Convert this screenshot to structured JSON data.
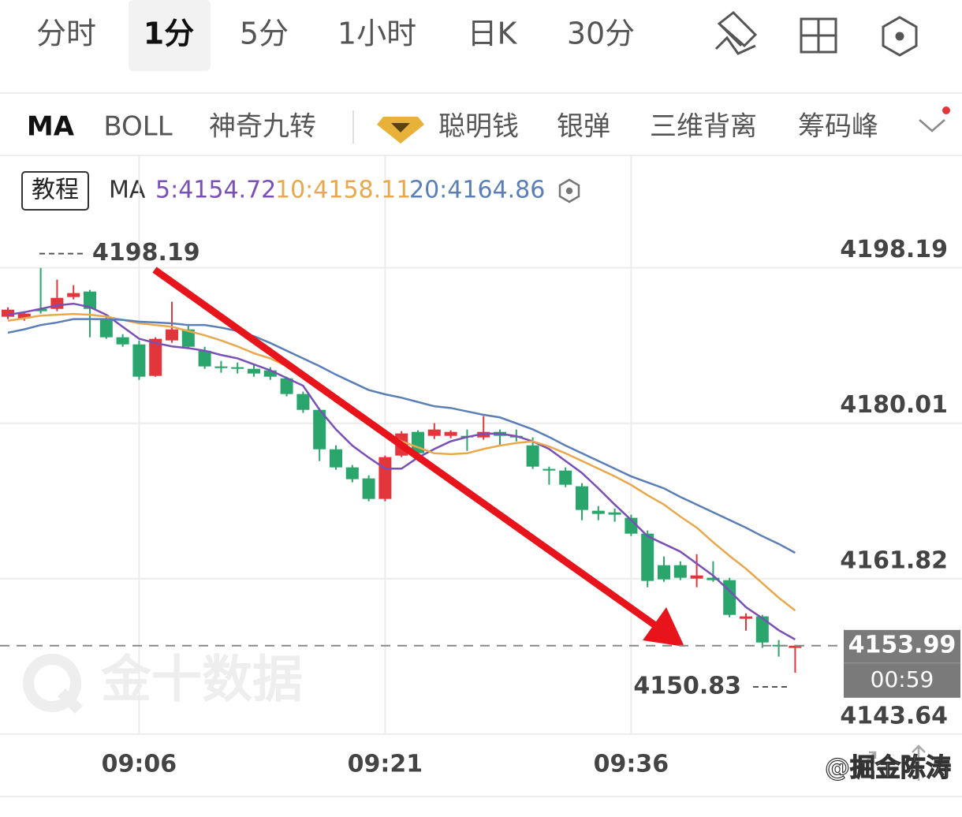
{
  "tabs": [
    "分时",
    "1分",
    "5分",
    "1小时",
    "日K",
    "30分"
  ],
  "indicators": [
    "MA",
    "BOLL",
    "神奇九转",
    "聪明钱",
    "银弹",
    "三维背离",
    "筹码峰"
  ],
  "tutorial_button": "教程",
  "legend_title": "MA",
  "watermark": "金十数据",
  "author_mark": "@掘金陈涛",
  "chart_data": {
    "type": "candlestick",
    "categories": [
      null,
      null,
      null,
      null,
      null,
      null,
      null,
      null,
      "09:06",
      null,
      null,
      null,
      null,
      null,
      null,
      null,
      null,
      null,
      null,
      null,
      null,
      null,
      null,
      "09:21",
      null,
      null,
      null,
      null,
      null,
      null,
      null,
      null,
      null,
      null,
      null,
      null,
      null,
      null,
      "09:36",
      null,
      null,
      null,
      null,
      null,
      null,
      null,
      null,
      null,
      null
    ],
    "open": [
      4192.47,
      4192.29,
      4193.39,
      4193.39,
      4194.78,
      4195.42,
      4192.19,
      4190.07,
      4189.24,
      4185.55,
      4189.7,
      4190.99,
      4188.5,
      4186.66,
      4186.57,
      4186.38,
      4186.2,
      4185.27,
      4183.43,
      4181.58,
      4176.97,
      4174.85,
      4173.56,
      4171.16,
      4176.23,
      4179.0,
      4178.54,
      4178.54,
      4178.54,
      4178.36,
      4179.0,
      4178.54,
      4177.43,
      4174.67,
      4174.48,
      4172.64,
      4169.78,
      4169.59,
      4168.95,
      4167.1,
      4163.41,
      4163.41,
      4161.84,
      4161.94,
      4161.66,
      4157.14,
      4157.42,
      4154.09,
      4153.73
    ],
    "high": [
      4193.58,
      4193.12,
      4198.19,
      4196.81,
      4196.16,
      4195.61,
      4192.65,
      4190.44,
      4189.7,
      4190.07,
      4194.22,
      4191.55,
      4188.96,
      4187.3,
      4187.12,
      4186.94,
      4186.57,
      4185.46,
      4183.71,
      4181.77,
      4177.43,
      4175.13,
      4173.93,
      4176.23,
      4179.09,
      4179.19,
      4180.02,
      4179.19,
      4179.28,
      4180.85,
      4179.28,
      4179.28,
      4178.36,
      4174.94,
      4174.85,
      4173.01,
      4170.33,
      4170.05,
      4169.32,
      4167.47,
      4164.43,
      4163.87,
      4164.7,
      4163.87,
      4161.94,
      4157.78,
      4157.6,
      4154.65,
      4154.09
    ],
    "low": [
      4192.19,
      4192.01,
      4192.84,
      4193.12,
      4194.5,
      4190.07,
      4189.89,
      4188.96,
      4185.09,
      4185.46,
      4189.43,
      4188.69,
      4186.38,
      4185.92,
      4185.83,
      4185.46,
      4185.09,
      4183.15,
      4181.22,
      4175.59,
      4174.57,
      4173.1,
      4170.88,
      4170.88,
      4176.05,
      4176.23,
      4178.17,
      4178.26,
      4176.79,
      4178.08,
      4177.34,
      4177.89,
      4174.67,
      4172.82,
      4172.54,
      4168.67,
      4168.67,
      4168.49,
      4166.82,
      4160.83,
      4161.47,
      4161.66,
      4160.83,
      4161.47,
      4157.32,
      4155.75,
      4153.73,
      4152.71,
      4150.83
    ],
    "close": [
      4193.3,
      4192.84,
      4193.12,
      4194.68,
      4195.24,
      4193.39,
      4190.07,
      4189.24,
      4185.46,
      4189.89,
      4190.99,
      4188.96,
      4186.66,
      4186.47,
      4186.38,
      4185.83,
      4185.46,
      4183.43,
      4181.58,
      4176.97,
      4174.85,
      4173.47,
      4171.16,
      4176.05,
      4178.82,
      4176.51,
      4179.28,
      4179.0,
      4178.36,
      4179.0,
      4178.54,
      4178.36,
      4174.94,
      4174.48,
      4172.82,
      4169.87,
      4169.41,
      4169.32,
      4167.1,
      4161.57,
      4161.75,
      4161.94,
      4162.21,
      4161.66,
      4157.6,
      4157.42,
      4154.37,
      4153.99,
      4153.99
    ],
    "up_color": "#e2363c",
    "down_color": "#2aa56b",
    "series": [
      {
        "name": "5:4154.72",
        "color": "#7a4fb8",
        "values": [
          4192.7,
          4193.0,
          4193.4,
          4193.8,
          4194.0,
          4193.6,
          4192.7,
          4191.3,
          4189.9,
          4189.4,
          4189.0,
          4188.8,
          4188.5,
          4188.0,
          4187.6,
          4186.9,
          4186.2,
          4185.3,
          4184.4,
          4181.6,
          4179.3,
          4177.4,
          4176.0,
          4174.7,
          4174.7,
          4176.0,
          4177.0,
          4177.9,
          4178.4,
          4178.8,
          4178.8,
          4178.5,
          4177.9,
          4177.0,
          4175.6,
          4174.2,
          4172.4,
          4170.5,
          4168.7,
          4166.8,
          4165.9,
          4165.0,
          4163.6,
          4162.2,
          4160.4,
          4158.5,
          4157.2,
          4155.8,
          4154.72
        ]
      },
      {
        "name": "10:4158.11",
        "color": "#e9a84c",
        "values": [
          4192.0,
          4192.3,
          4192.6,
          4192.7,
          4192.8,
          4192.7,
          4192.5,
          4192.1,
          4191.7,
          4191.5,
          4191.3,
          4190.8,
          4190.3,
          4189.7,
          4189.0,
          4188.2,
          4187.6,
          4186.7,
          4185.7,
          4184.2,
          4182.5,
          4181.4,
          4180.2,
          4179.0,
          4177.9,
          4177.2,
          4176.5,
          4176.4,
          4176.5,
          4177.0,
          4177.4,
          4177.7,
          4177.9,
          4177.3,
          4176.5,
          4175.6,
          4174.7,
          4173.8,
          4172.8,
          4171.6,
          4170.5,
          4169.1,
          4167.8,
          4166.1,
          4164.5,
          4163.0,
          4161.3,
          4159.6,
          4158.11
        ]
      },
      {
        "name": "20:4164.86",
        "color": "#5a7fb6",
        "values": [
          4190.6,
          4191.0,
          4191.5,
          4191.8,
          4192.2,
          4192.2,
          4192.2,
          4192.1,
          4191.9,
          4191.8,
          4191.7,
          4191.5,
          4191.5,
          4191.2,
          4190.8,
          4190.2,
          4189.4,
          4188.5,
          4187.6,
          4186.7,
          4185.7,
          4184.8,
          4183.9,
          4183.4,
          4183.0,
          4182.5,
          4182.0,
          4181.8,
          4181.4,
          4181.0,
          4180.7,
          4180.0,
          4179.3,
          4178.4,
          4177.4,
          4176.5,
          4175.6,
          4174.7,
          4173.8,
          4173.1,
          4172.4,
          4171.4,
          4170.5,
          4169.6,
          4168.7,
          4167.8,
          4166.8,
          4165.9,
          4164.86
        ]
      }
    ],
    "ylim": [
      4143.64,
      4211.35
    ],
    "yticks": [
      4198.19,
      4180.01,
      4161.82,
      4143.64
    ],
    "grid": true,
    "max_label": 4198.19,
    "min_label": 4150.83,
    "current_price": 4153.99,
    "countdown": "00:59"
  }
}
